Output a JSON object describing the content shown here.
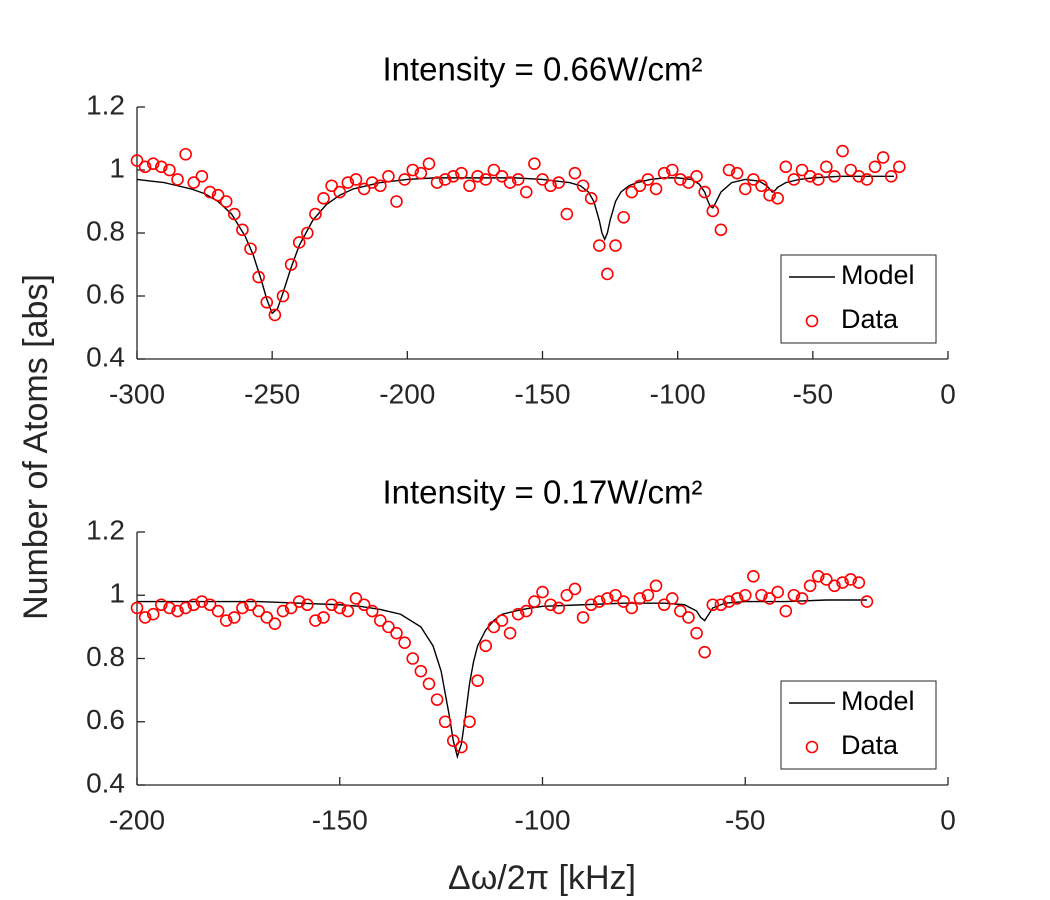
{
  "ylabel": "Number of Atoms [abs]",
  "xlabel": "Δω/2π [kHz]",
  "chart_data": [
    {
      "type": "line",
      "title": "Intensity = 0.66W/cm²",
      "legend": "lower right",
      "xlim": [
        -300,
        0
      ],
      "xticks": [
        -300,
        -250,
        -200,
        -150,
        -100,
        -50,
        0
      ],
      "ylim": [
        0.4,
        1.2
      ],
      "yticks": [
        0.4,
        0.6,
        0.8,
        1,
        1.2
      ],
      "series": [
        {
          "name": "Model",
          "type": "line",
          "color": "#000000",
          "x": [
            -300,
            -295,
            -290,
            -285,
            -280,
            -275,
            -270,
            -265,
            -260,
            -257,
            -254,
            -252,
            -250,
            -248,
            -246,
            -243,
            -240,
            -235,
            -230,
            -225,
            -220,
            -210,
            -200,
            -190,
            -180,
            -170,
            -160,
            -150,
            -145,
            -140,
            -136,
            -133,
            -131,
            -129,
            -128,
            -127,
            -126,
            -125,
            -123,
            -121,
            -118,
            -115,
            -110,
            -105,
            -100,
            -95,
            -92,
            -90,
            -89,
            -88,
            -87,
            -86,
            -84,
            -80,
            -75,
            -70,
            -67,
            -66,
            -65,
            -64,
            -63,
            -60,
            -55,
            -50,
            -40,
            -30,
            -20
          ],
          "values": [
            0.97,
            0.965,
            0.96,
            0.95,
            0.94,
            0.925,
            0.9,
            0.86,
            0.79,
            0.73,
            0.65,
            0.59,
            0.545,
            0.56,
            0.61,
            0.69,
            0.76,
            0.84,
            0.89,
            0.92,
            0.94,
            0.96,
            0.97,
            0.975,
            0.975,
            0.975,
            0.975,
            0.97,
            0.965,
            0.96,
            0.95,
            0.93,
            0.9,
            0.84,
            0.8,
            0.78,
            0.8,
            0.84,
            0.9,
            0.93,
            0.95,
            0.96,
            0.97,
            0.975,
            0.975,
            0.97,
            0.955,
            0.93,
            0.905,
            0.885,
            0.88,
            0.895,
            0.93,
            0.96,
            0.97,
            0.965,
            0.95,
            0.94,
            0.93,
            0.935,
            0.945,
            0.96,
            0.97,
            0.975,
            0.98,
            0.98,
            0.98
          ]
        },
        {
          "name": "Data",
          "type": "scatter",
          "color": "#ff0000",
          "x": [
            -300,
            -297,
            -294,
            -291,
            -288,
            -285,
            -282,
            -279,
            -276,
            -273,
            -270,
            -267,
            -264,
            -261,
            -258,
            -255,
            -252,
            -249,
            -246,
            -243,
            -240,
            -237,
            -234,
            -231,
            -228,
            -225,
            -222,
            -219,
            -216,
            -213,
            -210,
            -207,
            -204,
            -201,
            -198,
            -195,
            -192,
            -189,
            -186,
            -183,
            -180,
            -177,
            -174,
            -171,
            -168,
            -165,
            -162,
            -159,
            -156,
            -153,
            -150,
            -147,
            -144,
            -141,
            -138,
            -135,
            -132,
            -129,
            -126,
            -123,
            -120,
            -117,
            -114,
            -111,
            -108,
            -105,
            -102,
            -99,
            -96,
            -93,
            -90,
            -87,
            -84,
            -81,
            -78,
            -75,
            -72,
            -69,
            -66,
            -63,
            -60,
            -57,
            -54,
            -51,
            -48,
            -45,
            -42,
            -39,
            -36,
            -33,
            -30,
            -27,
            -24,
            -21,
            -18
          ],
          "values": [
            1.03,
            1.01,
            1.02,
            1.01,
            1.0,
            0.97,
            1.05,
            0.96,
            0.98,
            0.93,
            0.92,
            0.9,
            0.86,
            0.81,
            0.75,
            0.66,
            0.58,
            0.54,
            0.6,
            0.7,
            0.77,
            0.8,
            0.86,
            0.91,
            0.95,
            0.93,
            0.96,
            0.97,
            0.94,
            0.96,
            0.95,
            0.98,
            0.9,
            0.97,
            1.0,
            0.99,
            1.02,
            0.96,
            0.97,
            0.98,
            0.99,
            0.95,
            0.98,
            0.97,
            1.0,
            0.98,
            0.96,
            0.97,
            0.93,
            1.02,
            0.97,
            0.95,
            0.96,
            0.86,
            0.99,
            0.95,
            0.91,
            0.76,
            0.67,
            0.76,
            0.85,
            0.93,
            0.95,
            0.97,
            0.94,
            0.99,
            1.0,
            0.97,
            0.96,
            0.98,
            0.93,
            0.87,
            0.81,
            1.0,
            0.99,
            0.94,
            0.97,
            0.95,
            0.92,
            0.91,
            1.01,
            0.97,
            1.0,
            0.98,
            0.97,
            1.01,
            0.98,
            1.06,
            1.0,
            0.98,
            0.97,
            1.01,
            1.04,
            0.98,
            1.01
          ]
        }
      ]
    },
    {
      "type": "line",
      "title": "Intensity = 0.17W/cm²",
      "legend": "lower right",
      "xlim": [
        -200,
        0
      ],
      "xticks": [
        -200,
        -150,
        -100,
        -50,
        0
      ],
      "ylim": [
        0.4,
        1.2
      ],
      "yticks": [
        0.4,
        0.6,
        0.8,
        1,
        1.2
      ],
      "series": [
        {
          "name": "Model",
          "type": "line",
          "color": "#000000",
          "x": [
            -200,
            -190,
            -180,
            -170,
            -160,
            -150,
            -145,
            -140,
            -135,
            -130,
            -127,
            -125,
            -123,
            -122,
            -121,
            -120,
            -119,
            -118,
            -117,
            -116,
            -114,
            -112,
            -110,
            -105,
            -100,
            -90,
            -80,
            -70,
            -65,
            -62,
            -61,
            -60,
            -59,
            -58,
            -55,
            -50,
            -40,
            -30,
            -20
          ],
          "values": [
            0.98,
            0.98,
            0.98,
            0.98,
            0.975,
            0.97,
            0.965,
            0.955,
            0.94,
            0.9,
            0.84,
            0.76,
            0.62,
            0.54,
            0.49,
            0.53,
            0.62,
            0.72,
            0.79,
            0.84,
            0.89,
            0.92,
            0.94,
            0.955,
            0.965,
            0.97,
            0.975,
            0.975,
            0.97,
            0.95,
            0.93,
            0.92,
            0.94,
            0.96,
            0.975,
            0.98,
            0.98,
            0.985,
            0.985
          ]
        },
        {
          "name": "Data",
          "type": "scatter",
          "color": "#ff0000",
          "x": [
            -200,
            -198,
            -196,
            -194,
            -192,
            -190,
            -188,
            -186,
            -184,
            -182,
            -180,
            -178,
            -176,
            -174,
            -172,
            -170,
            -168,
            -166,
            -164,
            -162,
            -160,
            -158,
            -156,
            -154,
            -152,
            -150,
            -148,
            -146,
            -144,
            -142,
            -140,
            -138,
            -136,
            -134,
            -132,
            -130,
            -128,
            -126,
            -124,
            -122,
            -120,
            -118,
            -116,
            -114,
            -112,
            -110,
            -108,
            -106,
            -104,
            -102,
            -100,
            -98,
            -96,
            -94,
            -92,
            -90,
            -88,
            -86,
            -84,
            -82,
            -80,
            -78,
            -76,
            -74,
            -72,
            -70,
            -68,
            -66,
            -64,
            -62,
            -60,
            -58,
            -56,
            -54,
            -52,
            -50,
            -48,
            -46,
            -44,
            -42,
            -40,
            -38,
            -36,
            -34,
            -32,
            -30,
            -28,
            -26,
            -24,
            -22,
            -20
          ],
          "values": [
            0.96,
            0.93,
            0.94,
            0.97,
            0.96,
            0.95,
            0.96,
            0.97,
            0.98,
            0.97,
            0.95,
            0.92,
            0.93,
            0.96,
            0.97,
            0.95,
            0.93,
            0.91,
            0.95,
            0.96,
            0.98,
            0.97,
            0.92,
            0.93,
            0.97,
            0.96,
            0.95,
            0.99,
            0.97,
            0.95,
            0.92,
            0.9,
            0.88,
            0.85,
            0.8,
            0.76,
            0.72,
            0.67,
            0.6,
            0.54,
            0.52,
            0.6,
            0.73,
            0.84,
            0.9,
            0.92,
            0.88,
            0.94,
            0.95,
            0.98,
            1.01,
            0.97,
            0.96,
            1.0,
            1.02,
            0.93,
            0.97,
            0.98,
            0.99,
            1.0,
            0.98,
            0.96,
            0.99,
            1.0,
            1.03,
            0.97,
            0.99,
            0.95,
            0.93,
            0.88,
            0.82,
            0.97,
            0.97,
            0.98,
            0.99,
            1.0,
            1.06,
            1.0,
            0.99,
            1.01,
            0.95,
            1.0,
            0.99,
            1.03,
            1.06,
            1.05,
            1.03,
            1.04,
            1.05,
            1.04,
            0.98
          ]
        }
      ]
    }
  ]
}
